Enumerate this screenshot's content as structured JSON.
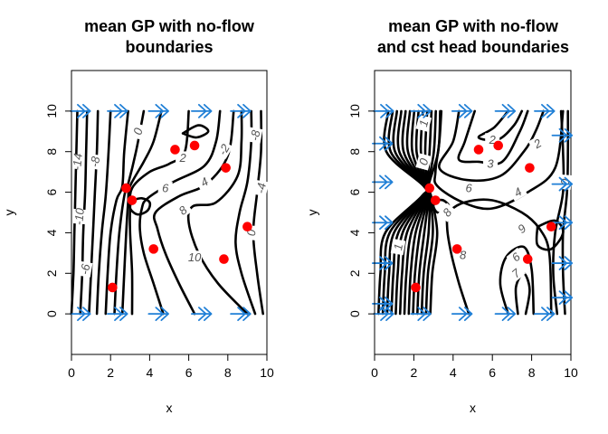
{
  "chart_data": [
    {
      "type": "contour",
      "title_lines": [
        "mean GP with no-flow",
        "boundaries"
      ],
      "xlabel": "x",
      "ylabel": "y",
      "xlim": [
        0,
        10
      ],
      "ylim": [
        -2,
        12
      ],
      "xticks": [
        0,
        2,
        4,
        6,
        8,
        10
      ],
      "yticks": [
        0,
        2,
        4,
        6,
        8,
        10
      ],
      "points": [
        {
          "x": 2.1,
          "y": 1.3
        },
        {
          "x": 2.8,
          "y": 6.2
        },
        {
          "x": 3.1,
          "y": 5.6
        },
        {
          "x": 4.2,
          "y": 3.2
        },
        {
          "x": 5.3,
          "y": 8.1
        },
        {
          "x": 6.3,
          "y": 8.3
        },
        {
          "x": 7.9,
          "y": 7.2
        },
        {
          "x": 9.0,
          "y": 4.3
        },
        {
          "x": 7.8,
          "y": 2.7
        }
      ],
      "boundary_arrows": {
        "direction": "right",
        "rows": [
          10,
          0
        ],
        "x": [
          0.6,
          2.5,
          4.6,
          6.8,
          8.8
        ]
      },
      "contour_labels": [
        {
          "text": "-14",
          "x": 0.3,
          "y": 7.5,
          "rot": -85
        },
        {
          "text": "-8",
          "x": 1.2,
          "y": 7.5,
          "rot": -80
        },
        {
          "text": "-10",
          "x": 0.4,
          "y": 4.8,
          "rot": -85
        },
        {
          "text": "-6",
          "x": 0.7,
          "y": 2.2,
          "rot": -80
        },
        {
          "text": "0",
          "x": 3.4,
          "y": 9.0,
          "rot": -75
        },
        {
          "text": "2",
          "x": 5.7,
          "y": 7.7,
          "rot": 0
        },
        {
          "text": "6",
          "x": 4.8,
          "y": 6.2,
          "rot": 0
        },
        {
          "text": "4",
          "x": 6.8,
          "y": 6.5,
          "rot": -30
        },
        {
          "text": "8",
          "x": 5.7,
          "y": 5.1,
          "rot": -40
        },
        {
          "text": "10",
          "x": 6.3,
          "y": 2.8,
          "rot": 0
        },
        {
          "text": "-2",
          "x": 7.8,
          "y": 8.1,
          "rot": -60
        },
        {
          "text": "-8",
          "x": 9.4,
          "y": 8.8,
          "rot": -80
        },
        {
          "text": "-4",
          "x": 9.7,
          "y": 6.2,
          "rot": -80
        },
        {
          "text": "0",
          "x": 9.2,
          "y": 4.0,
          "rot": -85
        }
      ]
    },
    {
      "type": "contour",
      "title_lines": [
        "mean GP with no-flow",
        "and cst head boundaries"
      ],
      "xlabel": "x",
      "ylabel": "y",
      "xlim": [
        0,
        10
      ],
      "ylim": [
        -2,
        12
      ],
      "xticks": [
        0,
        2,
        4,
        6,
        8,
        10
      ],
      "yticks": [
        0,
        2,
        4,
        6,
        8,
        10
      ],
      "points": [
        {
          "x": 2.1,
          "y": 1.3
        },
        {
          "x": 2.8,
          "y": 6.2
        },
        {
          "x": 3.1,
          "y": 5.6
        },
        {
          "x": 4.2,
          "y": 3.2
        },
        {
          "x": 5.3,
          "y": 8.1
        },
        {
          "x": 6.3,
          "y": 8.3
        },
        {
          "x": 7.9,
          "y": 7.2
        },
        {
          "x": 9.0,
          "y": 4.3
        },
        {
          "x": 7.8,
          "y": 2.7
        }
      ],
      "boundary_arrows": {
        "direction": "right",
        "rows": [
          10,
          0
        ],
        "x": [
          0.6,
          2.5,
          4.6,
          6.8,
          8.8
        ]
      },
      "side_arrows": {
        "left_y": [
          8.4,
          6.5,
          4.5,
          2.5,
          0.5
        ],
        "right_y": [
          8.8,
          6.4,
          4.5,
          2.5,
          0.8
        ]
      },
      "contour_labels": [
        {
          "text": "1",
          "x": 2.5,
          "y": 9.4,
          "rot": -75
        },
        {
          "text": "0",
          "x": 2.5,
          "y": 7.5,
          "rot": -75
        },
        {
          "text": "2",
          "x": 6.0,
          "y": 8.6,
          "rot": 0
        },
        {
          "text": "3",
          "x": 5.9,
          "y": 7.4,
          "rot": 0
        },
        {
          "text": "6",
          "x": 4.8,
          "y": 6.2,
          "rot": 0
        },
        {
          "text": "2",
          "x": 8.3,
          "y": 8.4,
          "rot": -30
        },
        {
          "text": "4",
          "x": 7.3,
          "y": 6.0,
          "rot": -30
        },
        {
          "text": "8",
          "x": 3.7,
          "y": 5.0,
          "rot": -50
        },
        {
          "text": "8",
          "x": 4.5,
          "y": 2.9,
          "rot": 0
        },
        {
          "text": "6",
          "x": 7.2,
          "y": 2.8,
          "rot": -40
        },
        {
          "text": "7",
          "x": 7.2,
          "y": 2.0,
          "rot": -40
        },
        {
          "text": "0",
          "x": 9.7,
          "y": 6.5,
          "rot": -85
        },
        {
          "text": "9",
          "x": 7.5,
          "y": 4.2,
          "rot": -40
        },
        {
          "text": "1",
          "x": 1.2,
          "y": 3.3,
          "rot": -80
        }
      ]
    }
  ]
}
